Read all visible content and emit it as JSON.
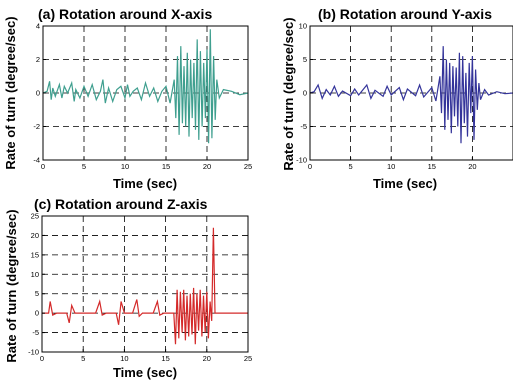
{
  "figure": {
    "panels": [
      {
        "id": "a",
        "title": "(a) Rotation around X-axis",
        "xlabel": "Time (sec)",
        "ylabel": "Rate of turn (degree/sec)"
      },
      {
        "id": "b",
        "title": "(b) Rotation around Y-axis",
        "xlabel": "Time (sec)",
        "ylabel": "Rate of turn (degree/sec)"
      },
      {
        "id": "c",
        "title": "(c) Rotation around Z-axis",
        "xlabel": "Time (sec)",
        "ylabel": "Rate of turn (degree/sec)"
      }
    ]
  },
  "chart_data": [
    {
      "type": "line",
      "title": "(a) Rotation around X-axis",
      "xlabel": "Time (sec)",
      "ylabel": "Rate of turn (degree/sec)",
      "xlim": [
        0,
        25
      ],
      "ylim": [
        -4,
        4
      ],
      "xticks": [
        0,
        5,
        10,
        15,
        20,
        25
      ],
      "yticks": [
        -4,
        -2,
        0,
        2,
        4
      ],
      "grid": true,
      "color": "#3f9f8f",
      "x": [
        0,
        0.5,
        0.8,
        1.0,
        1.2,
        1.5,
        2.0,
        2.3,
        2.6,
        3.0,
        3.5,
        3.8,
        4.0,
        4.5,
        5.0,
        5.5,
        6.0,
        6.5,
        7.0,
        7.3,
        7.6,
        8.0,
        8.5,
        9.0,
        9.5,
        10.0,
        10.3,
        10.6,
        11.0,
        11.5,
        12.0,
        12.5,
        13.0,
        13.5,
        14.0,
        14.5,
        15.0,
        15.5,
        16.0,
        16.2,
        16.4,
        16.6,
        16.8,
        17.0,
        17.2,
        17.4,
        17.6,
        17.8,
        18.0,
        18.2,
        18.4,
        18.6,
        18.8,
        19.0,
        19.2,
        19.4,
        19.6,
        19.8,
        20.0,
        20.2,
        20.4,
        20.6,
        20.8,
        21.0,
        21.2,
        21.5,
        22.0,
        23.0,
        24.0,
        25.0
      ],
      "y": [
        0,
        0.1,
        0.7,
        -0.4,
        0.3,
        -0.2,
        0.5,
        -0.3,
        0.4,
        0,
        0.6,
        -0.5,
        0.2,
        -0.3,
        0.4,
        -0.2,
        0.5,
        -0.4,
        0.1,
        0.8,
        -0.6,
        0.3,
        -0.5,
        0.2,
        0.4,
        -0.3,
        0.5,
        -0.2,
        0.1,
        0.3,
        -0.4,
        0.6,
        -0.2,
        0.3,
        -0.5,
        0.1,
        0.4,
        -0.6,
        0.8,
        -1.5,
        2.2,
        -2.5,
        2.8,
        -1.8,
        1.6,
        -2.0,
        2.4,
        -2.6,
        2.0,
        -1.5,
        1.8,
        -2.2,
        3.2,
        -2.8,
        2.5,
        -2.0,
        1.8,
        -1.5,
        2.6,
        -3.0,
        3.8,
        -2.7,
        2.2,
        -1.6,
        0.8,
        -0.3,
        0.2,
        0.1,
        -0.1,
        0
      ]
    },
    {
      "type": "line",
      "title": "(b) Rotation around Y-axis",
      "xlabel": "Time (sec)",
      "ylabel": "Rate of turn (degree/sec)",
      "xlim": [
        0,
        25
      ],
      "ylim": [
        -10,
        10
      ],
      "xticks": [
        0,
        5,
        10,
        15,
        20
      ],
      "yticks": [
        -10,
        -5,
        0,
        5,
        10
      ],
      "grid": true,
      "color": "#34349a",
      "x": [
        0,
        0.5,
        1.0,
        1.5,
        2.0,
        2.5,
        3.0,
        3.5,
        4.0,
        5.0,
        5.5,
        6.0,
        7.0,
        7.5,
        8.0,
        9.0,
        9.5,
        10.0,
        11.0,
        11.5,
        12.0,
        13.0,
        13.5,
        14.0,
        15.0,
        15.5,
        16.0,
        16.2,
        16.4,
        16.6,
        16.8,
        17.0,
        17.2,
        17.4,
        17.6,
        17.8,
        18.0,
        18.2,
        18.4,
        18.6,
        18.8,
        19.0,
        19.2,
        19.4,
        19.6,
        19.8,
        20.0,
        20.2,
        20.4,
        20.6,
        20.8,
        21.0,
        21.5,
        22.0,
        23.0,
        24.0,
        25.0
      ],
      "y": [
        0,
        0.2,
        1.2,
        -0.8,
        0.5,
        -0.3,
        1.0,
        -0.5,
        0.3,
        -0.4,
        0.6,
        -0.3,
        1.2,
        -0.8,
        0.4,
        -0.5,
        1.0,
        -0.3,
        0.8,
        -1.0,
        0.6,
        -0.4,
        1.2,
        -0.6,
        0.8,
        -1.2,
        2.5,
        -3.0,
        7.0,
        -5.5,
        5.0,
        -4.0,
        4.5,
        -6.0,
        4.0,
        -3.5,
        3.8,
        -5.0,
        6.0,
        -7.5,
        5.5,
        -4.5,
        3.0,
        -6.5,
        4.5,
        -3.0,
        5.5,
        -7.0,
        3.5,
        -2.5,
        1.5,
        -1.0,
        0.5,
        -0.3,
        0.2,
        -0.1,
        0
      ]
    },
    {
      "type": "line",
      "title": "(c) Rotation around Z-axis",
      "xlabel": "Time (sec)",
      "ylabel": "Rate of turn (degree/sec)",
      "xlim": [
        0,
        25
      ],
      "ylim": [
        -10,
        25
      ],
      "xticks": [
        0,
        5,
        10,
        15,
        20,
        25
      ],
      "yticks": [
        -10,
        -5,
        0,
        5,
        10,
        15,
        20,
        25
      ],
      "grid": true,
      "color": "#d42a2a",
      "x": [
        0,
        0.8,
        1.0,
        1.3,
        1.8,
        3.0,
        3.3,
        3.6,
        4.0,
        5.0,
        6.5,
        7.0,
        7.3,
        7.8,
        9.0,
        9.3,
        9.6,
        10.0,
        11.0,
        11.5,
        11.8,
        12.2,
        13.5,
        14.0,
        14.3,
        14.8,
        15.5,
        16.0,
        16.2,
        16.4,
        16.6,
        16.8,
        17.0,
        17.2,
        17.4,
        17.6,
        17.8,
        18.0,
        18.2,
        18.4,
        18.6,
        18.8,
        19.0,
        19.2,
        19.4,
        19.6,
        19.8,
        20.0,
        20.2,
        20.4,
        20.6,
        20.8,
        21.0,
        21.3,
        22.0,
        23.0,
        24.0,
        25.0
      ],
      "y": [
        0,
        0,
        3.0,
        -0.5,
        0,
        0,
        -2.5,
        2.0,
        0,
        0,
        0,
        3.0,
        -0.5,
        0,
        0,
        -3.0,
        3.0,
        0,
        0,
        3.5,
        -0.8,
        0,
        0,
        3.0,
        -0.5,
        0,
        0,
        0,
        -8.0,
        6.0,
        -6.5,
        5.5,
        -5.0,
        6.0,
        -7.0,
        4.5,
        -6.0,
        5.0,
        -5.5,
        6.5,
        -8.0,
        5.0,
        -4.5,
        6.0,
        -6.0,
        4.5,
        -5.0,
        5.5,
        -6.5,
        3.0,
        -2.0,
        22.0,
        0,
        0,
        0,
        0,
        0,
        0
      ]
    }
  ]
}
